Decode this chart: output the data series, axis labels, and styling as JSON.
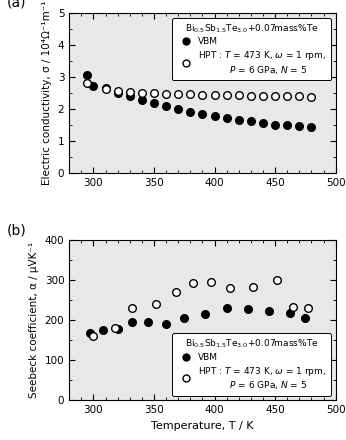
{
  "panel_a": {
    "vbm_T": [
      295,
      300,
      310,
      320,
      330,
      340,
      350,
      360,
      370,
      380,
      390,
      400,
      410,
      420,
      430,
      440,
      450,
      460,
      470,
      480
    ],
    "vbm_sigma": [
      3.07,
      2.72,
      2.65,
      2.52,
      2.42,
      2.3,
      2.2,
      2.1,
      2.0,
      1.92,
      1.85,
      1.78,
      1.72,
      1.67,
      1.63,
      1.57,
      1.52,
      1.5,
      1.47,
      1.44
    ],
    "hpt_T": [
      295,
      310,
      320,
      330,
      340,
      350,
      360,
      370,
      380,
      390,
      400,
      410,
      420,
      430,
      440,
      450,
      460,
      470,
      480
    ],
    "hpt_sigma": [
      2.82,
      2.63,
      2.58,
      2.55,
      2.52,
      2.51,
      2.49,
      2.47,
      2.46,
      2.45,
      2.44,
      2.43,
      2.43,
      2.42,
      2.42,
      2.41,
      2.4,
      2.4,
      2.39
    ],
    "ylabel": "Electric conductivity, σ / 10⁴Ω⁻¹m⁻¹",
    "ylim": [
      0,
      5
    ],
    "yticks": [
      0,
      1,
      2,
      3,
      4,
      5
    ]
  },
  "panel_b": {
    "vbm_T": [
      297,
      308,
      320,
      332,
      345,
      360,
      375,
      392,
      410,
      428,
      445,
      462,
      475
    ],
    "vbm_alpha": [
      168,
      175,
      178,
      197,
      196,
      192,
      207,
      217,
      232,
      228,
      224,
      218,
      207
    ],
    "hpt_T": [
      300,
      318,
      332,
      352,
      368,
      382,
      397,
      413,
      432,
      452,
      465,
      477
    ],
    "hpt_alpha": [
      162,
      180,
      230,
      242,
      272,
      293,
      296,
      282,
      284,
      300,
      234,
      230
    ],
    "ylabel": "Seebeck coefficient, α / μVK⁻¹",
    "ylim": [
      0,
      400
    ],
    "yticks": [
      0,
      100,
      200,
      300,
      400
    ]
  },
  "xlabel": "Temperature, T / K",
  "xlim": [
    280,
    500
  ],
  "xticks": [
    300,
    350,
    400,
    450,
    500
  ],
  "legend_title_a": "Bi$_{0.5}$Sb$_{1.5}$Te$_{3.0}$+0.07mass%Te",
  "legend_title_b": "Bi$_{0.5}$Sb$_{1.5}$Te$_{3.0}$+0.07mass%Te",
  "legend_vbm": "VBM",
  "legend_hpt_a": "HPT : $T$ = 473 K, $\\omega$ = 1 rpm,\n           $P$ = 6 GPa, $N$ = 5",
  "legend_hpt_b": "HPT : $T$ = 473 K, $\\omega$ = 1 rpm,\n           $P$ = 6 GPa, $N$ = 5",
  "panel_a_label": "(a)",
  "panel_b_label": "(b)",
  "facecolor": "#e8e8e8",
  "markersize": 5.5,
  "legend_fontsize": 6.5,
  "tick_labelsize": 7.5,
  "ylabel_fontsize": 7.5,
  "xlabel_fontsize": 8.0
}
